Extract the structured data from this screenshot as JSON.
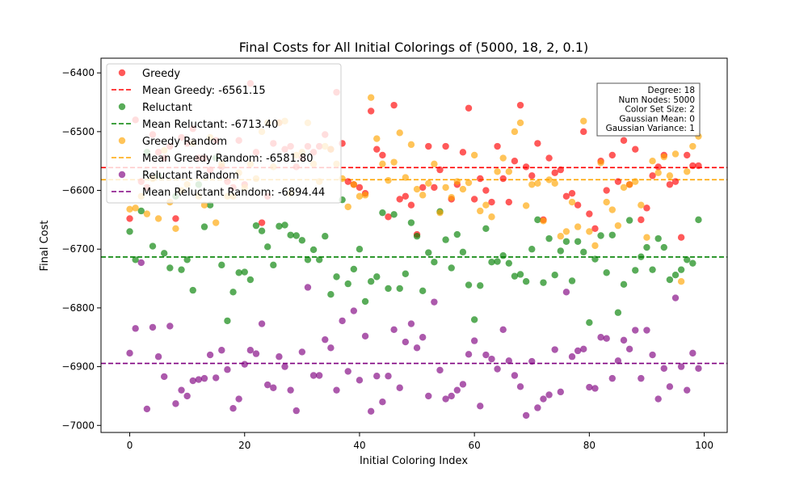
{
  "chart_data": {
    "type": "scatter",
    "title": "Final Costs for All Initial Colorings of (5000, 18, 2, 0.1)",
    "xlabel": "Initial Coloring Index",
    "ylabel": "Final Cost",
    "xlim": [
      -5,
      104
    ],
    "ylim": [
      -7012,
      -6375
    ],
    "xticks": [
      0,
      20,
      40,
      60,
      80,
      100
    ],
    "xtick_labels": [
      "0",
      "20",
      "40",
      "60",
      "80",
      "100"
    ],
    "yticks": [
      -7000,
      -6900,
      -6800,
      -6700,
      -6600,
      -6500,
      -6400
    ],
    "ytick_labels": [
      "−7000",
      "−6900",
      "−6800",
      "−6700",
      "−6600",
      "−6500",
      "−6400"
    ],
    "grid": false,
    "legend_position": "upper-left",
    "series": [
      {
        "name": "Greedy",
        "color": "#ff0000",
        "mean": -6561.15,
        "mean_label": "Mean Greedy: -6561.15",
        "values": [
          -6648,
          -6480,
          -6585,
          -6595,
          -6505,
          -6535,
          -6545,
          -6525,
          -6648,
          -6510,
          -6520,
          -6495,
          -6545,
          -6545,
          -6565,
          -6515,
          -6560,
          -6585,
          -6595,
          -6515,
          -6590,
          -6418,
          -6535,
          -6655,
          -6610,
          -6520,
          -6485,
          -6530,
          -6525,
          -6560,
          -6545,
          -6525,
          -6535,
          -6525,
          -6505,
          -6530,
          -6433,
          -6520,
          -6585,
          -6590,
          -6595,
          -6605,
          -6465,
          -6530,
          -6540,
          -6645,
          -6455,
          -6615,
          -6610,
          -6625,
          -6675,
          -6595,
          -6525,
          -6595,
          -6565,
          -6525,
          -6615,
          -6590,
          -6535,
          -6460,
          -6615,
          -6580,
          -6600,
          -6620,
          -6525,
          -6580,
          -6620,
          -6550,
          -6455,
          -6560,
          -6575,
          -6520,
          -6650,
          -6545,
          -6570,
          -6565,
          -6610,
          -6605,
          -6625,
          -6500,
          -6640,
          -6665,
          -6550,
          -6600,
          -6540,
          -6585,
          -6515,
          -6590,
          -6530,
          -6650,
          -6630,
          -6575,
          -6560,
          -6540,
          -6590,
          -6585,
          -6680,
          -6540,
          -6558,
          -6558
        ]
      },
      {
        "name": "Reluctant",
        "color": "#008000",
        "mean": -6713.4,
        "mean_label": "Mean Reluctant: -6713.40",
        "values": [
          -6670,
          -6718,
          -6635,
          -6535,
          -6695,
          -6575,
          -6707,
          -6732,
          -6610,
          -6735,
          -6718,
          -6770,
          -6590,
          -6662,
          -6625,
          -6545,
          -6727,
          -6822,
          -6773,
          -6740,
          -6739,
          -6752,
          -6660,
          -6669,
          -6696,
          -6727,
          -6661,
          -6659,
          -6676,
          -6677,
          -6685,
          -6718,
          -6701,
          -6718,
          -6678,
          -6777,
          -6747,
          -6616,
          -6759,
          -6734,
          -6700,
          -6789,
          -6755,
          -6747,
          -6638,
          -6767,
          -6641,
          -6767,
          -6742,
          -6655,
          -6678,
          -6771,
          -6706,
          -6722,
          -6636,
          -6684,
          -6732,
          -6675,
          -6705,
          -6761,
          -6820,
          -6762,
          -6665,
          -6722,
          -6721,
          -6711,
          -6724,
          -6746,
          -6743,
          -6755,
          -6700,
          -6650,
          -6757,
          -6682,
          -6744,
          -6703,
          -6687,
          -6754,
          -6687,
          -6705,
          -6825,
          -6717,
          -6677,
          -6740,
          -6676,
          -6808,
          -6760,
          -6651,
          -6736,
          -6713,
          -6697,
          -6735,
          -6682,
          -6697,
          -6752,
          -6744,
          -6735,
          -6718,
          -6724,
          -6650
        ]
      },
      {
        "name": "Greedy Random",
        "color": "#ffa500",
        "mean": -6581.8,
        "mean_label": "Mean Greedy Random: -6581.80",
        "values": [
          -6632,
          -6630,
          -6610,
          -6640,
          -6580,
          -6648,
          -6532,
          -6620,
          -6665,
          -6600,
          -6590,
          -6520,
          -6610,
          -6625,
          -6510,
          -6655,
          -6555,
          -6610,
          -6610,
          -6570,
          -6595,
          -6555,
          -6580,
          -6500,
          -6485,
          -6560,
          -6485,
          -6482,
          -6605,
          -6540,
          -6535,
          -6485,
          -6555,
          -6585,
          -6525,
          -6530,
          -6555,
          -6580,
          -6628,
          -6590,
          -6610,
          -6608,
          -6442,
          -6512,
          -6555,
          -6583,
          -6552,
          -6502,
          -6578,
          -6522,
          -6598,
          -6608,
          -6588,
          -6555,
          -6638,
          -6595,
          -6612,
          -6585,
          -6598,
          -6587,
          -6540,
          -6635,
          -6625,
          -6645,
          -6568,
          -6545,
          -6568,
          -6500,
          -6485,
          -6626,
          -6590,
          -6588,
          -6652,
          -6582,
          -6588,
          -6678,
          -6670,
          -6620,
          -6662,
          -6482,
          -6670,
          -6694,
          -6553,
          -6620,
          -6633,
          -6660,
          -6595,
          -6590,
          -6585,
          -6625,
          -6680,
          -6550,
          -6570,
          -6543,
          -6575,
          -6538,
          -6755,
          -6568,
          -6525,
          -6508
        ]
      },
      {
        "name": "Reluctant Random",
        "color": "#800080",
        "mean": -6894.44,
        "mean_label": "Mean Reluctant Random: -6894.44",
        "values": [
          -6877,
          -6835,
          -6723,
          -6972,
          -6833,
          -6883,
          -6917,
          -6831,
          -6963,
          -6940,
          -6950,
          -6924,
          -6922,
          -6920,
          -6880,
          -6919,
          -6872,
          -6905,
          -6971,
          -6955,
          -6896,
          -6872,
          -6878,
          -6827,
          -6931,
          -6936,
          -6883,
          -6900,
          -6940,
          -6975,
          -6875,
          -6765,
          -6915,
          -6915,
          -6854,
          -6868,
          -6940,
          -6822,
          -6908,
          -6805,
          -6923,
          -6848,
          -6976,
          -6916,
          -6960,
          -6916,
          -6837,
          -6936,
          -6858,
          -6827,
          -6868,
          -6850,
          -6950,
          -6790,
          -6906,
          -6955,
          -6950,
          -6940,
          -6930,
          -6879,
          -6856,
          -6967,
          -6880,
          -6887,
          -6904,
          -6837,
          -6890,
          -6915,
          -6934,
          -6983,
          -6891,
          -6970,
          -6955,
          -6948,
          -6871,
          -6943,
          -6773,
          -6883,
          -6873,
          -6870,
          -6935,
          -6937,
          -6850,
          -6852,
          -6920,
          -6890,
          -6855,
          -6870,
          -6838,
          -6920,
          -6838,
          -6880,
          -6955,
          -6903,
          -6934,
          -6783,
          -6900,
          -6940,
          -6877,
          -6903
        ]
      }
    ],
    "legend": [
      {
        "kind": "marker",
        "series": 0,
        "label": "Greedy"
      },
      {
        "kind": "line",
        "series": 0,
        "label": "Mean Greedy: -6561.15"
      },
      {
        "kind": "marker",
        "series": 1,
        "label": "Reluctant"
      },
      {
        "kind": "line",
        "series": 1,
        "label": "Mean Reluctant: -6713.40"
      },
      {
        "kind": "marker",
        "series": 2,
        "label": "Greedy Random"
      },
      {
        "kind": "line",
        "series": 2,
        "label": "Mean Greedy Random: -6581.80"
      },
      {
        "kind": "marker",
        "series": 3,
        "label": "Reluctant Random"
      },
      {
        "kind": "line",
        "series": 3,
        "label": "Mean Reluctant Random: -6894.44"
      }
    ],
    "info_box": [
      "Degree: 18",
      "Num Nodes: 5000",
      "Color Set Size: 2",
      "Gaussian Mean: 0",
      "Gaussian Variance: 1"
    ]
  }
}
